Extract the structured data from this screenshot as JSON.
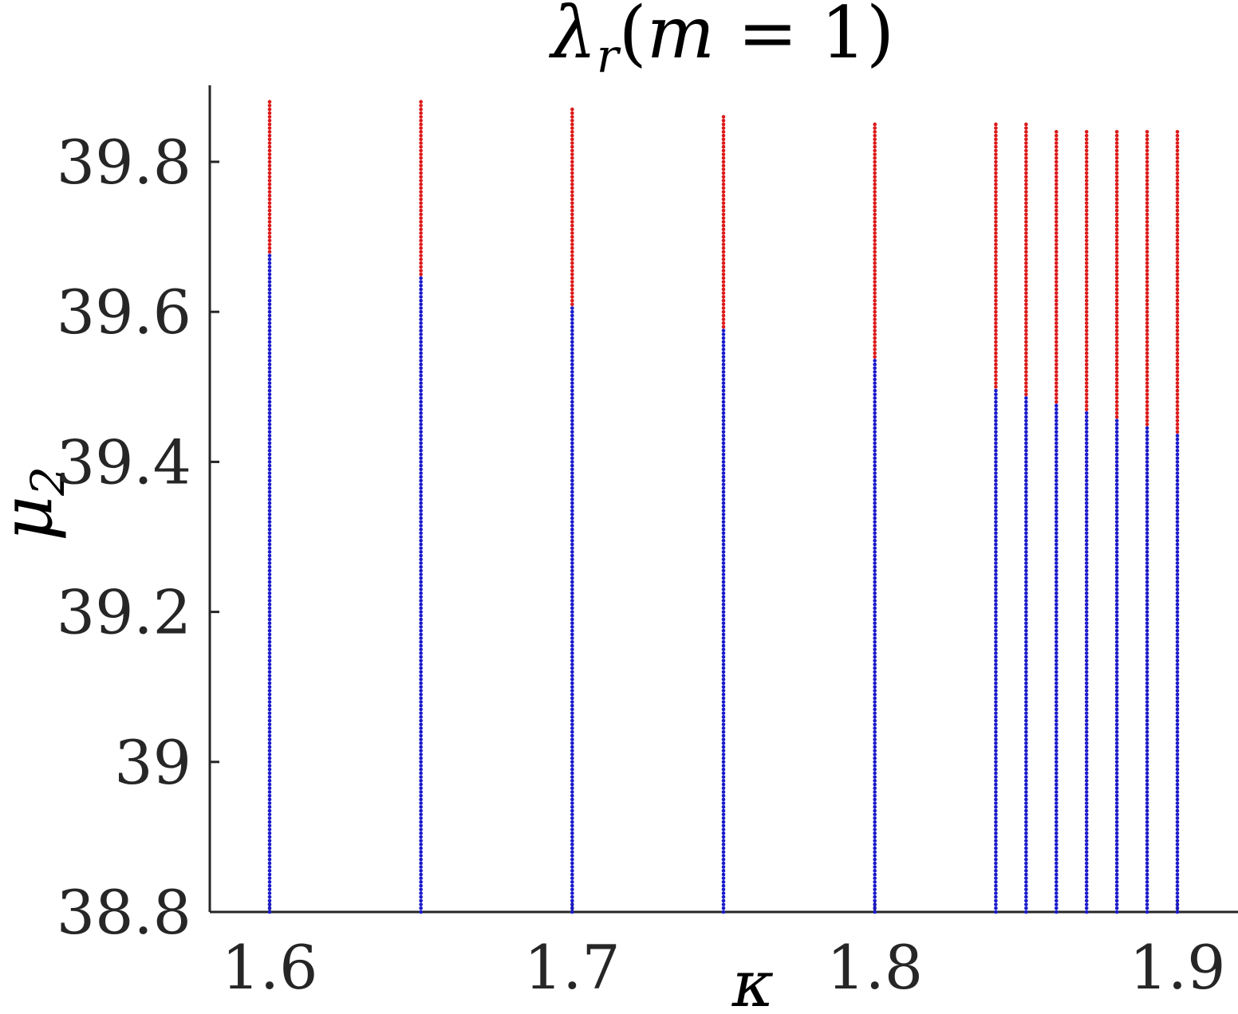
{
  "chart_data": {
    "type": "scatter",
    "title": {
      "base": "λ",
      "sub": "r",
      "rest_open": "(",
      "var": "m",
      "rest_close": " = 1)"
    },
    "xlabel": "κ",
    "ylabel": {
      "base": "μ",
      "sub": "2"
    },
    "xlim": [
      1.58,
      1.92
    ],
    "ylim": [
      38.8,
      39.9
    ],
    "xticks": [
      1.6,
      1.7,
      1.8,
      1.9
    ],
    "xtick_labels": [
      "1.6",
      "1.7",
      "1.8",
      "1.9"
    ],
    "yticks": [
      38.8,
      39.0,
      39.2,
      39.4,
      39.6,
      39.8
    ],
    "ytick_labels": [
      "38.8",
      "39",
      "39.2",
      "39.4",
      "39.6",
      "39.8"
    ],
    "grid": false,
    "legend": "none",
    "colors": {
      "stable": "#1a1acc",
      "unstable": "#dd1a1a",
      "axis": "#262626"
    },
    "series": [
      {
        "kappa": 1.6,
        "mu2_min": 38.8,
        "red_from": 39.68,
        "mu2_max": 39.88
      },
      {
        "kappa": 1.65,
        "mu2_min": 38.8,
        "red_from": 39.65,
        "mu2_max": 39.88
      },
      {
        "kappa": 1.7,
        "mu2_min": 38.8,
        "red_from": 39.61,
        "mu2_max": 39.87
      },
      {
        "kappa": 1.75,
        "mu2_min": 38.8,
        "red_from": 39.58,
        "mu2_max": 39.86
      },
      {
        "kappa": 1.8,
        "mu2_min": 38.8,
        "red_from": 39.54,
        "mu2_max": 39.85
      },
      {
        "kappa": 1.84,
        "mu2_min": 38.8,
        "red_from": 39.5,
        "mu2_max": 39.85
      },
      {
        "kappa": 1.85,
        "mu2_min": 38.8,
        "red_from": 39.49,
        "mu2_max": 39.85
      },
      {
        "kappa": 1.86,
        "mu2_min": 38.8,
        "red_from": 39.48,
        "mu2_max": 39.84
      },
      {
        "kappa": 1.87,
        "mu2_min": 38.8,
        "red_from": 39.47,
        "mu2_max": 39.84
      },
      {
        "kappa": 1.88,
        "mu2_min": 38.8,
        "red_from": 39.46,
        "mu2_max": 39.84
      },
      {
        "kappa": 1.89,
        "mu2_min": 38.8,
        "red_from": 39.45,
        "mu2_max": 39.84
      },
      {
        "kappa": 1.9,
        "mu2_min": 38.8,
        "red_from": 39.44,
        "mu2_max": 39.84
      }
    ],
    "point_step": 0.005
  }
}
